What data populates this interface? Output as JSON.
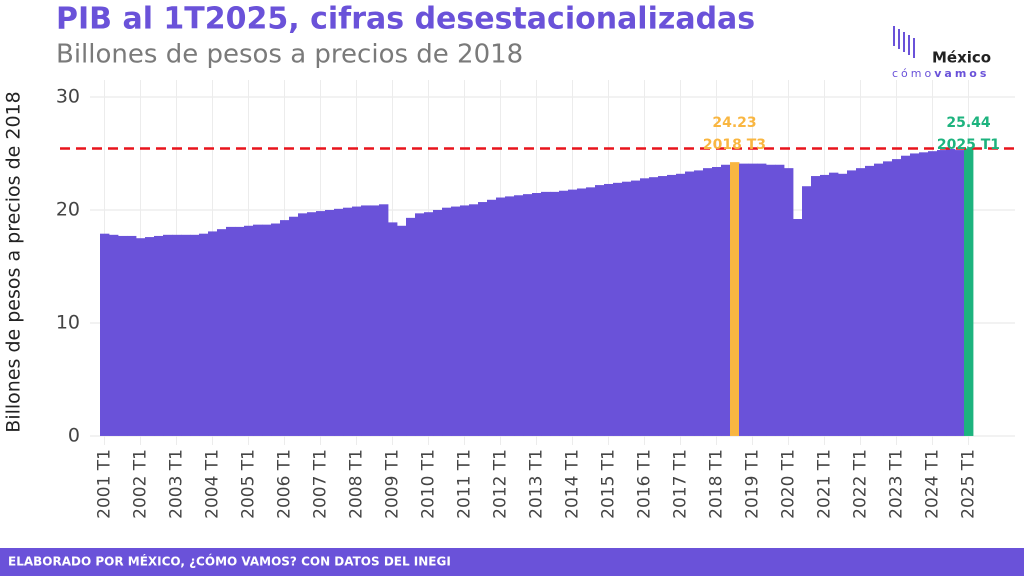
{
  "chart_data": {
    "type": "bar",
    "title": "PIB al 1T2025, cifras desestacionalizadas",
    "subtitle": "Billones de pesos a precios de 2018",
    "ylabel": "Billones de pesos a precios de 2018",
    "footer": "ELABORADO POR MÉXICO, ¿CÓMO VAMOS? CON DATOS DEL INEGI",
    "logo": {
      "name": "México",
      "tagline_light": "cómo",
      "tagline_bold": "vamos"
    },
    "categories": [
      "2001 T1",
      null,
      null,
      null,
      "2002 T1",
      null,
      null,
      null,
      "2003 T1",
      null,
      null,
      null,
      "2004 T1",
      null,
      null,
      null,
      "2005 T1",
      null,
      null,
      null,
      "2006 T1",
      null,
      null,
      null,
      "2007 T1",
      null,
      null,
      null,
      "2008 T1",
      null,
      null,
      null,
      "2009 T1",
      null,
      null,
      null,
      "2010 T1",
      null,
      null,
      null,
      "2011 T1",
      null,
      null,
      null,
      "2012 T1",
      null,
      null,
      null,
      "2013 T1",
      null,
      null,
      null,
      "2014 T1",
      null,
      null,
      null,
      "2015 T1",
      null,
      null,
      null,
      "2016 T1",
      null,
      null,
      null,
      "2017 T1",
      null,
      null,
      null,
      "2018 T1",
      null,
      null,
      null,
      "2019 T1",
      null,
      null,
      null,
      "2020 T1",
      null,
      null,
      null,
      "2021 T1",
      null,
      null,
      null,
      "2022 T1",
      null,
      null,
      null,
      "2023 T1",
      null,
      null,
      null,
      "2024 T1",
      null,
      null,
      null,
      "2025 T1"
    ],
    "values": [
      17.9,
      17.8,
      17.7,
      17.7,
      17.5,
      17.6,
      17.7,
      17.8,
      17.8,
      17.8,
      17.8,
      17.9,
      18.1,
      18.3,
      18.5,
      18.5,
      18.6,
      18.7,
      18.7,
      18.8,
      19.1,
      19.4,
      19.7,
      19.8,
      19.9,
      20.0,
      20.1,
      20.2,
      20.3,
      20.4,
      20.4,
      20.5,
      18.9,
      18.6,
      19.3,
      19.7,
      19.8,
      20.0,
      20.2,
      20.3,
      20.4,
      20.5,
      20.7,
      20.9,
      21.1,
      21.2,
      21.3,
      21.4,
      21.5,
      21.6,
      21.6,
      21.7,
      21.8,
      21.9,
      22.0,
      22.2,
      22.3,
      22.4,
      22.5,
      22.6,
      22.8,
      22.9,
      23.0,
      23.1,
      23.2,
      23.4,
      23.5,
      23.7,
      23.8,
      24.0,
      24.23,
      24.1,
      24.1,
      24.1,
      24.0,
      24.0,
      23.7,
      19.2,
      22.1,
      23.0,
      23.1,
      23.3,
      23.2,
      23.5,
      23.7,
      23.9,
      24.1,
      24.3,
      24.5,
      24.8,
      25.0,
      25.1,
      25.2,
      25.3,
      25.4,
      25.3,
      25.44
    ],
    "color": "#6a52d9",
    "highlights": [
      {
        "index": 70,
        "label": "2018 T3",
        "color": "#f9b641"
      },
      {
        "index": 96,
        "label": "2025 T1",
        "color": "#1db37e"
      }
    ],
    "reference_color": "#e8141c",
    "ylim": [
      -0.8,
      31.5
    ],
    "yticks": [
      0,
      10,
      20,
      30
    ],
    "grid": true
  }
}
